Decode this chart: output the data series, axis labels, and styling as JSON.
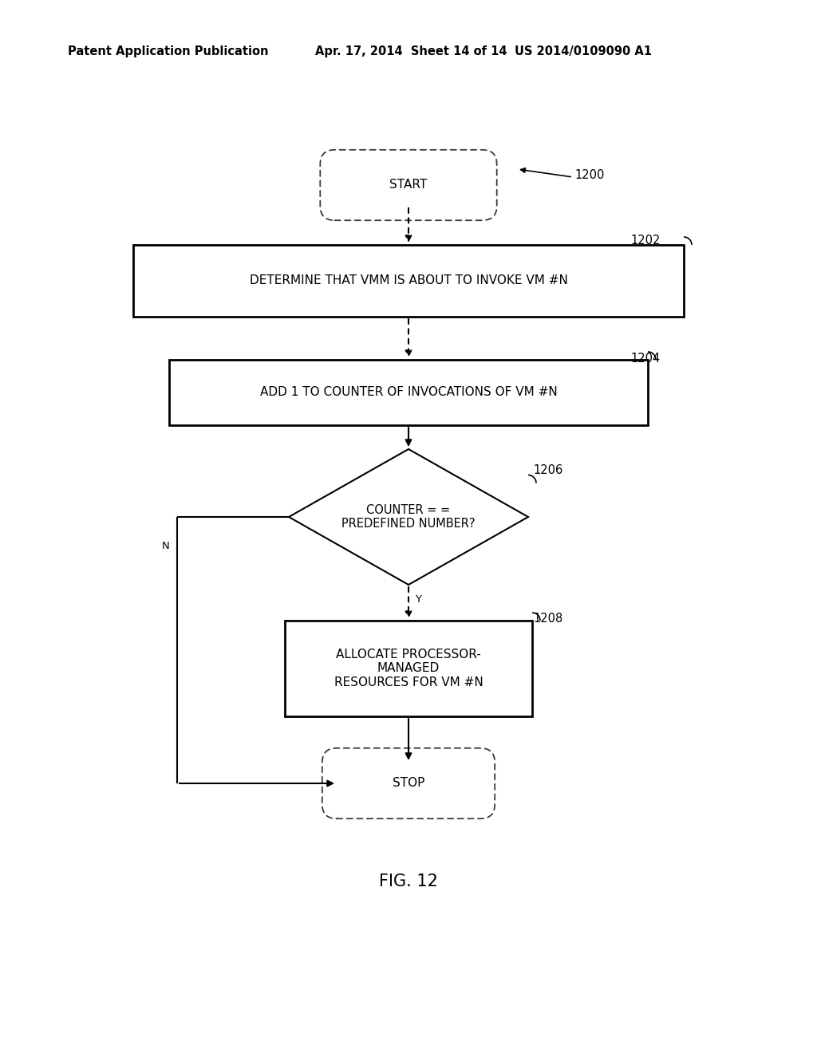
{
  "bg_color": "#ffffff",
  "header_left": "Patent Application Publication",
  "header_mid": "Apr. 17, 2014  Sheet 14 of 14",
  "header_right": "US 2014/0109090 A1",
  "fig_label": "FIG. 12",
  "ref_1200": "1200",
  "ref_1202": "1202",
  "ref_1204": "1204",
  "ref_1206": "1206",
  "ref_1208": "1208",
  "start_label": "START",
  "box1_label": "DETERMINE THAT VMM IS ABOUT TO INVOKE VM #N",
  "box2_label": "ADD 1 TO COUNTER OF INVOCATIONS OF VM #N",
  "diamond_label": "COUNTER = =\nPREDEFINED NUMBER?",
  "box3_label": "ALLOCATE PROCESSOR-\nMANAGED\nRESOURCES FOR VM #N",
  "stop_label": "STOP",
  "y_label": "Y",
  "n_label": "N",
  "text_color": "#000000",
  "font_size_header": 10.5,
  "font_size_nodes": 10.5,
  "font_size_ref": 10.5,
  "font_size_fig": 15,
  "font_size_yn": 9.5
}
